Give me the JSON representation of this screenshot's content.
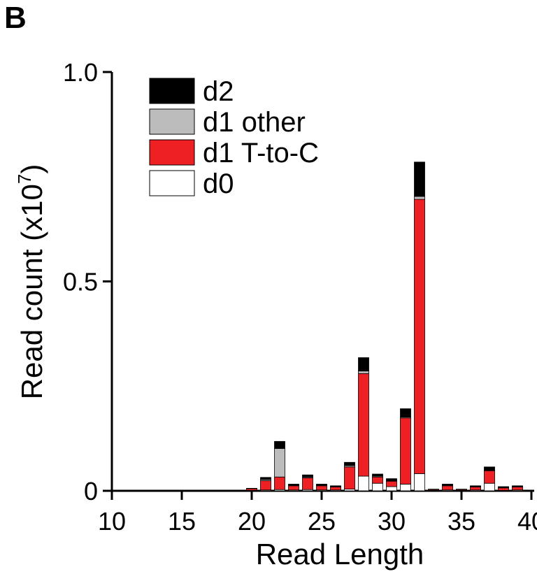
{
  "panel_label": "B",
  "chart_data": {
    "type": "bar",
    "stacked": true,
    "xlabel": "Read Length",
    "ylabel": "Read count (x10",
    "ylabel_exponent": "7",
    "ylabel_close": ")",
    "xlim": [
      10,
      40
    ],
    "ylim": [
      0,
      1.0
    ],
    "xticks": [
      10,
      15,
      20,
      25,
      30,
      35,
      40
    ],
    "xtick_labels": [
      "10",
      "15",
      "20",
      "25",
      "30",
      "35",
      "40"
    ],
    "yticks": [
      0,
      0.5,
      1.0
    ],
    "ytick_labels": [
      "0",
      "0.5",
      "1.0"
    ],
    "grid": false,
    "legend_position": "top-left",
    "x": [
      20,
      21,
      22,
      23,
      24,
      25,
      26,
      27,
      28,
      29,
      30,
      31,
      32,
      33,
      34,
      35,
      36,
      37,
      38,
      39
    ],
    "series": [
      {
        "name": "d0",
        "color": "#ffffff",
        "values": [
          0.001,
          0.002,
          0.003,
          0.002,
          0.003,
          0.002,
          0.002,
          0.004,
          0.035,
          0.018,
          0.01,
          0.016,
          0.041,
          0.001,
          0.002,
          0.001,
          0.002,
          0.018,
          0.001,
          0.002
        ]
      },
      {
        "name": "d1 T-to-C",
        "color": "#ee2024",
        "values": [
          0.004,
          0.022,
          0.03,
          0.01,
          0.028,
          0.01,
          0.007,
          0.053,
          0.245,
          0.015,
          0.013,
          0.158,
          0.655,
          0.002,
          0.01,
          0.002,
          0.007,
          0.03,
          0.006,
          0.007
        ]
      },
      {
        "name": "d1 other",
        "color": "#bcbcbc",
        "values": [
          0.0,
          0.003,
          0.068,
          0.001,
          0.002,
          0.001,
          0.001,
          0.003,
          0.006,
          0.002,
          0.001,
          0.002,
          0.007,
          0.0,
          0.001,
          0.0,
          0.001,
          0.001,
          0.001,
          0.001
        ]
      },
      {
        "name": "d2",
        "color": "#000000",
        "values": [
          0.001,
          0.005,
          0.017,
          0.003,
          0.005,
          0.003,
          0.002,
          0.008,
          0.032,
          0.005,
          0.005,
          0.02,
          0.082,
          0.001,
          0.003,
          0.001,
          0.002,
          0.008,
          0.002,
          0.002
        ]
      }
    ],
    "legend_order": [
      "d2",
      "d1 other",
      "d1 T-to-C",
      "d0"
    ]
  }
}
